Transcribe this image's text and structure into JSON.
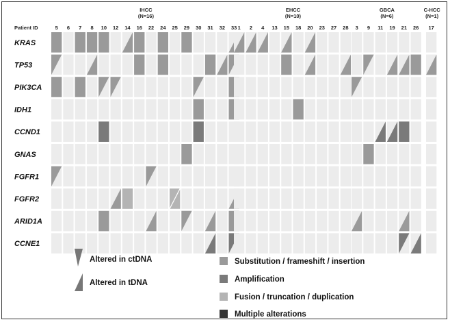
{
  "header_label": "Patient ID",
  "groups": [
    {
      "name": "IHCC",
      "n": "(N=16)",
      "patients": [
        "5",
        "6",
        "7",
        "8",
        "10",
        "12",
        "14",
        "16",
        "22",
        "24",
        "25",
        "29",
        "30",
        "31",
        "32",
        "33"
      ]
    },
    {
      "name": "EHCC",
      "n": "(N=10)",
      "patients": [
        "1",
        "2",
        "4",
        "13",
        "15",
        "18",
        "20",
        "23",
        "27",
        "28"
      ]
    },
    {
      "name": "GBCA",
      "n": "(N=6)",
      "patients": [
        "3",
        "9",
        "11",
        "19",
        "21",
        "26"
      ]
    },
    {
      "name": "C-HCC",
      "n": "(N=1)",
      "patients": [
        "17"
      ]
    }
  ],
  "genes": [
    "KRAS",
    "TP53",
    "PIK3CA",
    "IDH1",
    "CCND1",
    "GNAS",
    "FGFR1",
    "FGFR2",
    "ARID1A",
    "CCNE1"
  ],
  "colors": {
    "empty": "#ececec",
    "substitution": "#9a9a9a",
    "amplification": "#7a7a7a",
    "fusion": "#b4b4b4",
    "multiple": "#333333"
  },
  "alterations": [
    {
      "gene": "KRAS",
      "patient": "5",
      "type": "substitution",
      "source": "both"
    },
    {
      "gene": "KRAS",
      "patient": "7",
      "type": "substitution",
      "source": "both"
    },
    {
      "gene": "KRAS",
      "patient": "8",
      "type": "substitution",
      "source": "both"
    },
    {
      "gene": "KRAS",
      "patient": "10",
      "type": "substitution",
      "source": "both"
    },
    {
      "gene": "KRAS",
      "patient": "14",
      "type": "substitution",
      "source": "tDNA"
    },
    {
      "gene": "KRAS",
      "patient": "16",
      "type": "substitution",
      "source": "both"
    },
    {
      "gene": "KRAS",
      "patient": "24",
      "type": "substitution",
      "source": "both"
    },
    {
      "gene": "KRAS",
      "patient": "29",
      "type": "substitution",
      "source": "both"
    },
    {
      "gene": "KRAS",
      "patient": "33",
      "type": "substitution",
      "source": "tDNA"
    },
    {
      "gene": "KRAS",
      "patient": "1",
      "type": "substitution",
      "source": "tDNA"
    },
    {
      "gene": "KRAS",
      "patient": "2",
      "type": "substitution",
      "source": "tDNA"
    },
    {
      "gene": "KRAS",
      "patient": "4",
      "type": "substitution",
      "source": "tDNA"
    },
    {
      "gene": "KRAS",
      "patient": "15",
      "type": "substitution",
      "source": "tDNA"
    },
    {
      "gene": "KRAS",
      "patient": "20",
      "type": "substitution",
      "source": "tDNA"
    },
    {
      "gene": "TP53",
      "patient": "5",
      "type": "substitution",
      "source": "ctDNA"
    },
    {
      "gene": "TP53",
      "patient": "8",
      "type": "substitution",
      "source": "tDNA"
    },
    {
      "gene": "TP53",
      "patient": "16",
      "type": "substitution",
      "source": "both"
    },
    {
      "gene": "TP53",
      "patient": "24",
      "type": "substitution",
      "source": "both"
    },
    {
      "gene": "TP53",
      "patient": "31",
      "type": "substitution",
      "source": "both"
    },
    {
      "gene": "TP53",
      "patient": "32",
      "type": "substitution",
      "source": "tDNA"
    },
    {
      "gene": "TP53",
      "patient": "33",
      "type": "substitution",
      "source": "ctDNA"
    },
    {
      "gene": "TP53",
      "patient": "15",
      "type": "substitution",
      "source": "both"
    },
    {
      "gene": "TP53",
      "patient": "20",
      "type": "substitution",
      "source": "tDNA"
    },
    {
      "gene": "TP53",
      "patient": "28",
      "type": "substitution",
      "source": "tDNA"
    },
    {
      "gene": "TP53",
      "patient": "9",
      "type": "substitution",
      "source": "ctDNA"
    },
    {
      "gene": "TP53",
      "patient": "19",
      "type": "substitution",
      "source": "tDNA"
    },
    {
      "gene": "TP53",
      "patient": "21",
      "type": "substitution",
      "source": "tDNA"
    },
    {
      "gene": "TP53",
      "patient": "26",
      "type": "substitution",
      "source": "both"
    },
    {
      "gene": "TP53",
      "patient": "17",
      "type": "substitution",
      "source": "tDNA"
    },
    {
      "gene": "PIK3CA",
      "patient": "5",
      "type": "substitution",
      "source": "both"
    },
    {
      "gene": "PIK3CA",
      "patient": "7",
      "type": "substitution",
      "source": "both"
    },
    {
      "gene": "PIK3CA",
      "patient": "10",
      "type": "substitution",
      "source": "ctDNA"
    },
    {
      "gene": "PIK3CA",
      "patient": "12",
      "type": "substitution",
      "source": "ctDNA"
    },
    {
      "gene": "PIK3CA",
      "patient": "30",
      "type": "substitution",
      "source": "ctDNA"
    },
    {
      "gene": "PIK3CA",
      "patient": "33",
      "type": "substitution",
      "source": "both"
    },
    {
      "gene": "PIK3CA",
      "patient": "3",
      "type": "substitution",
      "source": "ctDNA"
    },
    {
      "gene": "IDH1",
      "patient": "30",
      "type": "substitution",
      "source": "both"
    },
    {
      "gene": "IDH1",
      "patient": "33",
      "type": "substitution",
      "source": "both"
    },
    {
      "gene": "IDH1",
      "patient": "18",
      "type": "substitution",
      "source": "both"
    },
    {
      "gene": "CCND1",
      "patient": "10",
      "type": "amplification",
      "source": "both"
    },
    {
      "gene": "CCND1",
      "patient": "30",
      "type": "amplification",
      "source": "both"
    },
    {
      "gene": "CCND1",
      "patient": "11",
      "type": "amplification",
      "source": "tDNA"
    },
    {
      "gene": "CCND1",
      "patient": "19",
      "type": "amplification",
      "source": "tDNA"
    },
    {
      "gene": "CCND1",
      "patient": "21",
      "type": "amplification",
      "source": "both"
    },
    {
      "gene": "GNAS",
      "patient": "29",
      "type": "substitution",
      "source": "both"
    },
    {
      "gene": "GNAS",
      "patient": "9",
      "type": "substitution",
      "source": "both"
    },
    {
      "gene": "FGFR1",
      "patient": "5",
      "type": "substitution",
      "source": "ctDNA"
    },
    {
      "gene": "FGFR1",
      "patient": "22",
      "type": "substitution",
      "source": "ctDNA"
    },
    {
      "gene": "FGFR2",
      "patient": "12",
      "type": "substitution",
      "source": "tDNA"
    },
    {
      "gene": "FGFR2",
      "patient": "14",
      "type": "fusion",
      "source": "both"
    },
    {
      "gene": "FGFR2",
      "patient": "25",
      "type": "fusion",
      "source": "split"
    },
    {
      "gene": "FGFR2",
      "patient": "33",
      "type": "substitution",
      "source": "tDNA"
    },
    {
      "gene": "ARID1A",
      "patient": "10",
      "type": "substitution",
      "source": "both"
    },
    {
      "gene": "ARID1A",
      "patient": "22",
      "type": "substitution",
      "source": "tDNA"
    },
    {
      "gene": "ARID1A",
      "patient": "29",
      "type": "substitution",
      "source": "ctDNA"
    },
    {
      "gene": "ARID1A",
      "patient": "31",
      "type": "substitution",
      "source": "tDNA"
    },
    {
      "gene": "ARID1A",
      "patient": "33",
      "type": "substitution",
      "source": "both"
    },
    {
      "gene": "ARID1A",
      "patient": "3",
      "type": "substitution",
      "source": "tDNA"
    },
    {
      "gene": "ARID1A",
      "patient": "21",
      "type": "substitution",
      "source": "tDNA"
    },
    {
      "gene": "CCNE1",
      "patient": "31",
      "type": "amplification",
      "source": "tDNA"
    },
    {
      "gene": "CCNE1",
      "patient": "33",
      "type": "amplification",
      "source": "ctDNA"
    },
    {
      "gene": "CCNE1",
      "patient": "21",
      "type": "amplification",
      "source": "ctDNA"
    },
    {
      "gene": "CCNE1",
      "patient": "26",
      "type": "amplification",
      "source": "tDNA"
    }
  ],
  "legend": {
    "ctdna_label": "Altered in ctDNA",
    "tdna_label": "Altered in tDNA",
    "substitution_label": "Substitution / frameshift / insertion",
    "amplification_label": "Amplification",
    "fusion_label": "Fusion / truncation / duplication",
    "multiple_label": "Multiple alterations"
  }
}
